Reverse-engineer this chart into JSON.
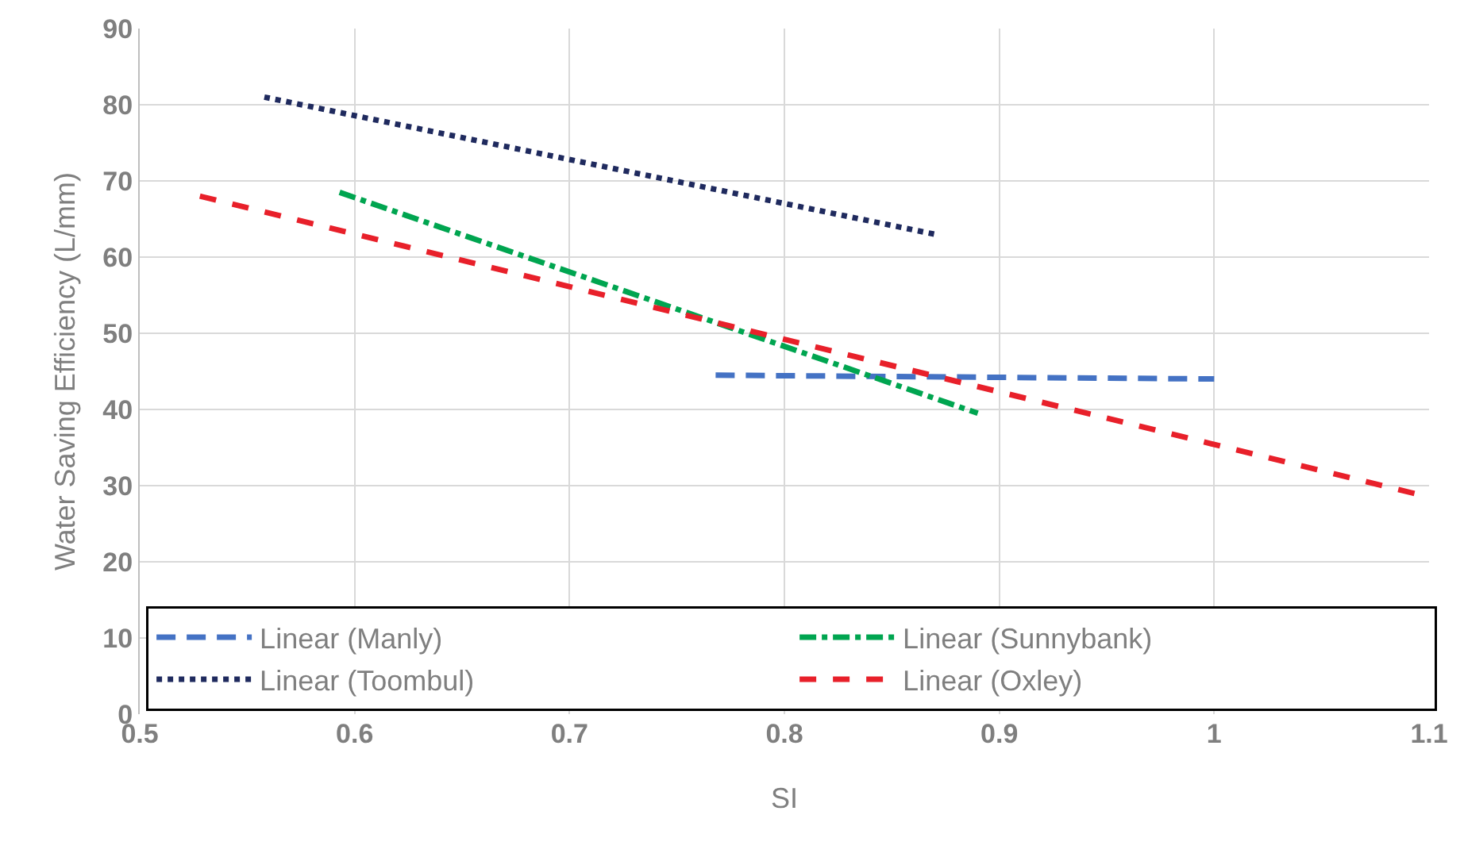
{
  "chart_data": {
    "type": "line",
    "xlabel": "SI",
    "ylabel": "Water Saving Efficiency (L/mm)",
    "xlim": [
      0.5,
      1.1
    ],
    "xticks": [
      0.5,
      0.6,
      0.7,
      0.8,
      0.9,
      1,
      1.1
    ],
    "ylim": [
      0,
      90
    ],
    "yticks": [
      0,
      10,
      20,
      30,
      40,
      50,
      60,
      70,
      80,
      90
    ],
    "grid": true,
    "legend": "bottom",
    "marker": "none",
    "series": [
      {
        "name": "Linear (Manly)",
        "color": "#4472c4",
        "line_style": "longdash",
        "x": [
          0.768,
          1.0
        ],
        "values": [
          44.5,
          44
        ]
      },
      {
        "name": "Linear (Sunnybank)",
        "color": "#00a550",
        "line_style": "dashdot",
        "x": [
          0.593,
          0.89
        ],
        "values": [
          68.5,
          39.5
        ]
      },
      {
        "name": "Linear (Toombul)",
        "color": "#1f2a5e",
        "line_style": "dotted",
        "x": [
          0.558,
          0.87
        ],
        "values": [
          81,
          63
        ]
      },
      {
        "name": "Linear (Oxley)",
        "color": "#e8202a",
        "line_style": "dashed",
        "x": [
          0.528,
          1.1
        ],
        "values": [
          68,
          28.5
        ]
      }
    ]
  }
}
